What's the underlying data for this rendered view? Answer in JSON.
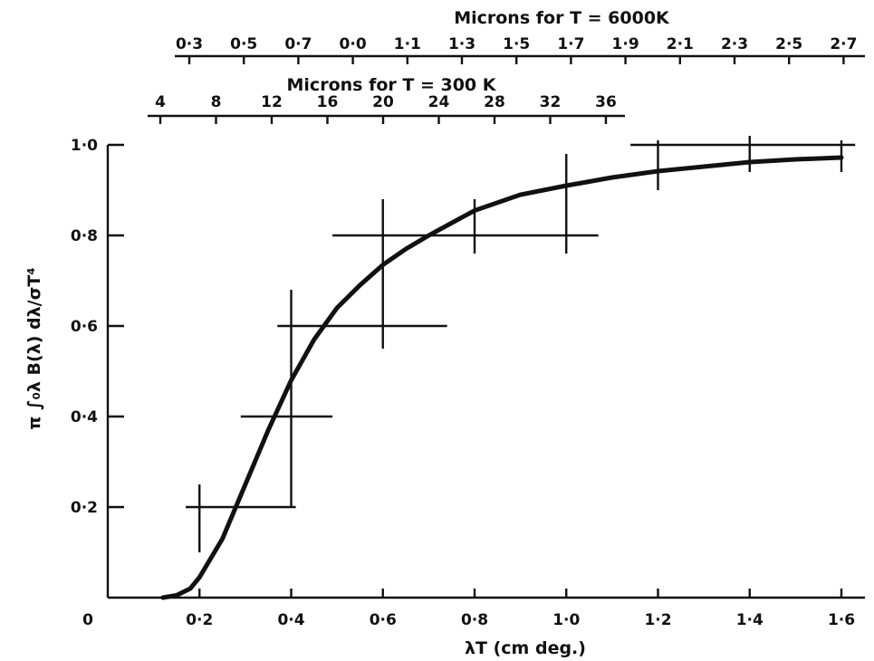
{
  "chart_data": {
    "type": "line",
    "title": "",
    "xlabel": "λT (cm deg.)",
    "ylabel": "π ∫₀λ B(λ) dλ/σT⁴",
    "xlim": [
      0,
      1.6
    ],
    "ylim": [
      0,
      1.0
    ],
    "x_ticks": [
      "0",
      "0·2",
      "0·4",
      "0·6",
      "0·8",
      "1·0",
      "1·2",
      "1·4",
      "1·6"
    ],
    "y_ticks": [
      "0·2",
      "0·4",
      "0·6",
      "0·8",
      "1·0"
    ],
    "top_axis_1": {
      "label": "Microns for T = 6000K",
      "ticks": [
        "0·3",
        "0·5",
        "0·7",
        "0·0",
        "1·1",
        "1·3",
        "1·5",
        "1·7",
        "1·9",
        "2·1",
        "2·3",
        "2·5",
        "2·7"
      ]
    },
    "top_axis_2": {
      "label": "Microns for T = 300 K",
      "ticks": [
        "4",
        "8",
        "12",
        "16",
        "20",
        "24",
        "28",
        "32",
        "36"
      ]
    },
    "series": [
      {
        "x": [
          0.12,
          0.15,
          0.18,
          0.2,
          0.25,
          0.3,
          0.35,
          0.4,
          0.45,
          0.5,
          0.55,
          0.6,
          0.65,
          0.7,
          0.8,
          0.9,
          1.0,
          1.1,
          1.2,
          1.3,
          1.4,
          1.5,
          1.6
        ],
        "y": [
          0.0,
          0.005,
          0.02,
          0.045,
          0.13,
          0.25,
          0.37,
          0.48,
          0.57,
          0.64,
          0.69,
          0.735,
          0.77,
          0.8,
          0.855,
          0.89,
          0.91,
          0.928,
          0.942,
          0.952,
          0.962,
          0.968,
          0.972
        ]
      }
    ],
    "error_bars": [
      {
        "x": 0.2,
        "y": 0.2,
        "x_lo": 0.17,
        "x_hi": 0.41,
        "y_lo": 0.1,
        "y_hi": 0.25
      },
      {
        "x": 0.4,
        "y": 0.4,
        "x_lo": 0.29,
        "x_hi": 0.49,
        "y_lo": 0.2,
        "y_hi": 0.68
      },
      {
        "x": 0.6,
        "y": 0.6,
        "x_lo": 0.37,
        "x_hi": 0.74,
        "y_lo": 0.55,
        "y_hi": 0.88
      },
      {
        "x": 0.8,
        "y": 0.8,
        "x_lo": 0.49,
        "x_hi": 1.07,
        "y_lo": 0.76,
        "y_hi": 0.88
      },
      {
        "x": 1.0,
        "y": 0.8,
        "x_lo": 1.0,
        "x_hi": 1.0,
        "y_lo": 0.76,
        "y_hi": 0.98
      },
      {
        "x": 1.2,
        "y": 1.0,
        "x_lo": 1.14,
        "x_hi": 1.63,
        "y_lo": 0.9,
        "y_hi": 1.01
      },
      {
        "x": 1.4,
        "y": 1.0,
        "x_lo": 1.4,
        "x_hi": 1.4,
        "y_lo": 0.94,
        "y_hi": 1.02
      },
      {
        "x": 1.6,
        "y": 1.0,
        "x_lo": 1.6,
        "x_hi": 1.6,
        "y_lo": 0.94,
        "y_hi": 1.01
      }
    ]
  }
}
